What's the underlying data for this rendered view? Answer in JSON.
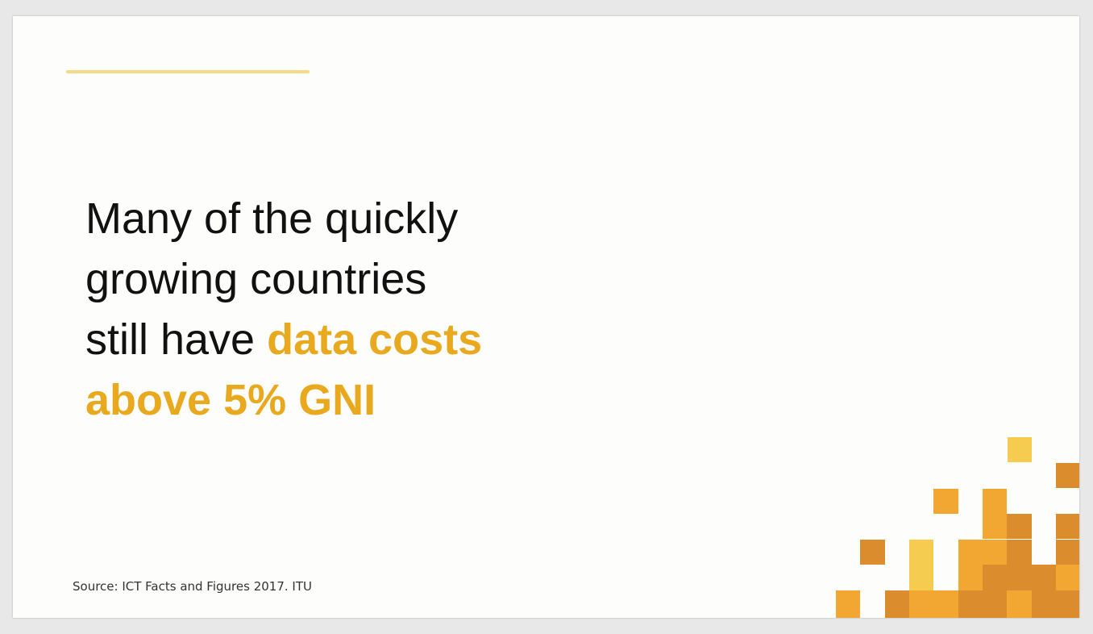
{
  "slide": {
    "headline": {
      "line1": "Many of the quickly",
      "line2": "growing countries",
      "line3_plain": "still have ",
      "line3_highlight": "data costs",
      "line4_highlight": " above 5% GNI"
    },
    "source": "Source: ICT Facts and Figures 2017. ITU"
  },
  "colors": {
    "background": "#fdfdfb",
    "accent_rule": "#f7da86",
    "highlight": "#e8a91e",
    "blocks": [
      "#f6cc50",
      "#f2a733",
      "#db8c2c"
    ]
  }
}
